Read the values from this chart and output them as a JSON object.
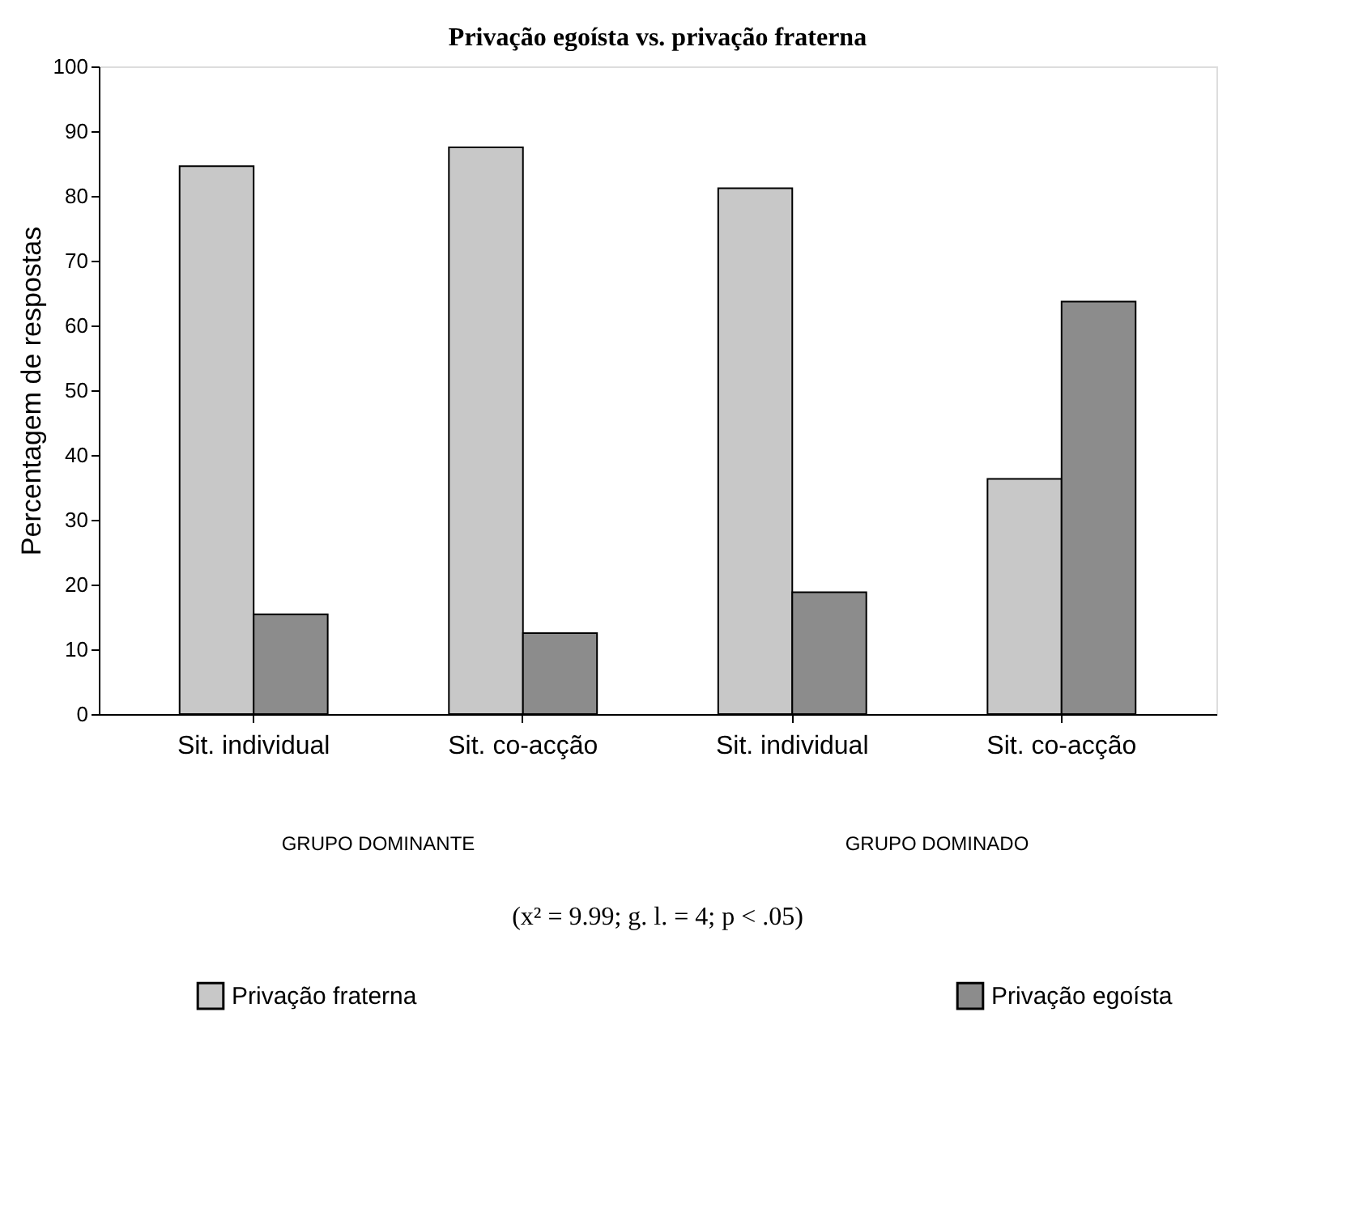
{
  "chart_data": {
    "type": "bar",
    "title": "Privação egoísta vs. privação fraterna",
    "ylabel": "Percentagem de respostas",
    "categories": [
      "Sit. individual",
      "Sit. co-acção",
      "Sit. individual",
      "Sit. co-acção"
    ],
    "series": [
      {
        "name": "Privação fraterna",
        "color": "#c8c8c8",
        "values": [
          84.6,
          87.5,
          81.2,
          36.3
        ]
      },
      {
        "name": "Privação egoísta",
        "color": "#8c8c8c",
        "values": [
          15.4,
          12.5,
          18.8,
          63.7
        ]
      }
    ],
    "ylim": [
      0,
      100
    ],
    "yticks": [
      0,
      10,
      20,
      30,
      40,
      50,
      60,
      70,
      80,
      90,
      100
    ],
    "grid": false,
    "legend": "bottom",
    "annotations": [
      "GRUPO DOMINANTE",
      "GRUPO DOMINADO",
      "(x² = 9.99; g. l. = 4; p < .05)"
    ]
  }
}
